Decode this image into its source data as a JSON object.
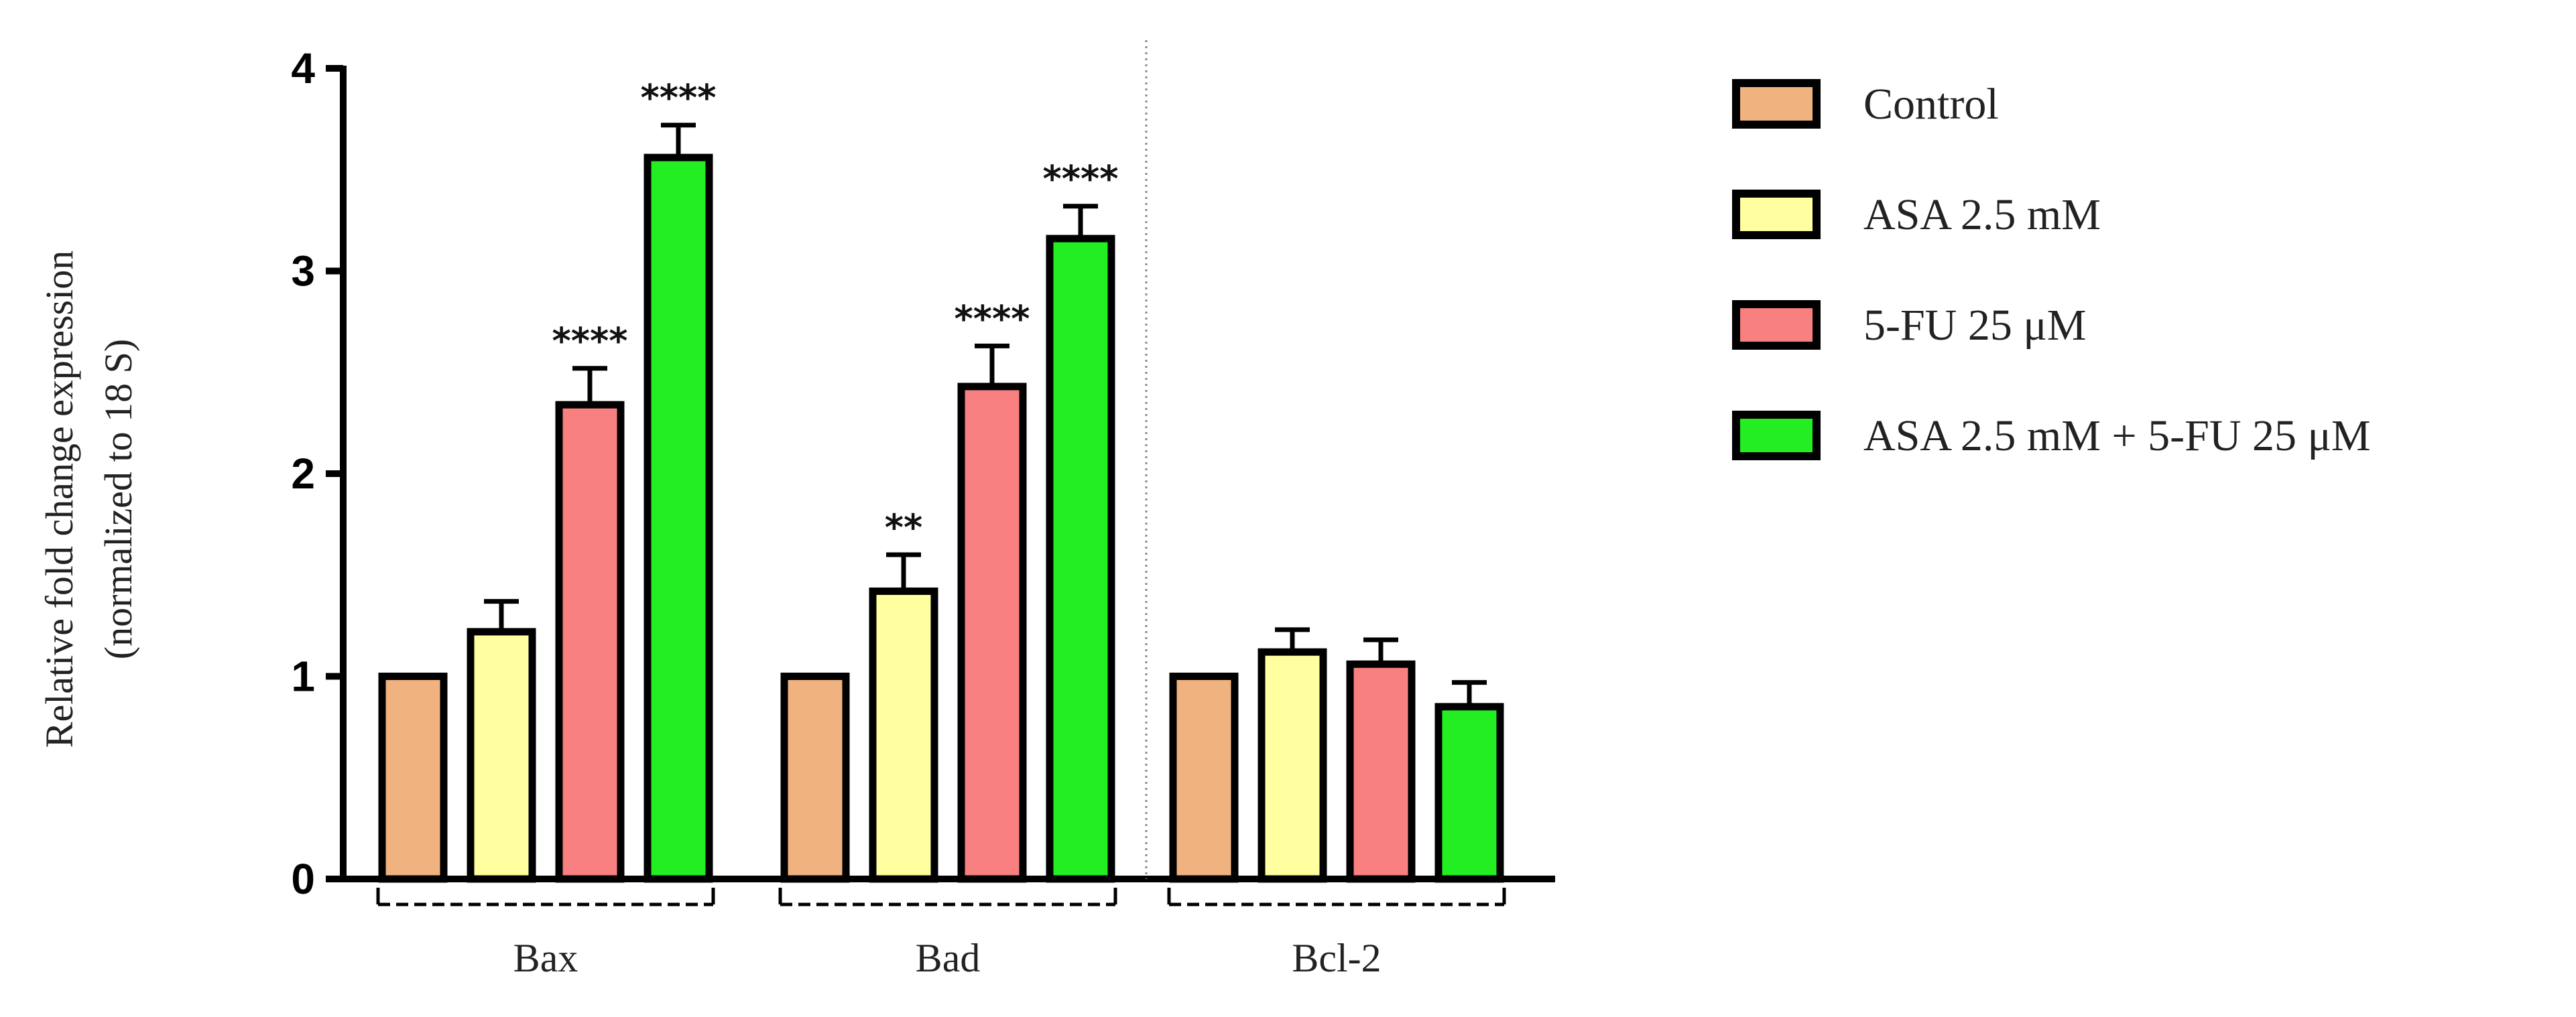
{
  "chart_data": {
    "type": "bar",
    "categories": [
      "Bax",
      "Bad",
      "Bcl-2"
    ],
    "ylabel_line1": "Relative fold change expression",
    "ylabel_line2": "(normalized to 18  S)",
    "xlabel": "",
    "title": "",
    "ylim": [
      0,
      4
    ],
    "yticks": [
      0,
      1,
      2,
      3,
      4
    ],
    "grid": false,
    "legend_position": "right",
    "series": [
      {
        "name": "Control",
        "color": "#F0B27F",
        "values": [
          1.0,
          1.0,
          1.0
        ],
        "errors": [
          0,
          0,
          0
        ],
        "significance": [
          "",
          "",
          ""
        ]
      },
      {
        "name": "ASA 2.5 mM",
        "color": "#FFFFA0",
        "values": [
          1.22,
          1.42,
          1.12
        ],
        "errors": [
          0.15,
          0.18,
          0.11
        ],
        "significance": [
          "",
          "**",
          ""
        ]
      },
      {
        "name": "5-FU 25 μM",
        "color": "#F88080",
        "values": [
          2.34,
          2.43,
          1.06
        ],
        "errors": [
          0.18,
          0.2,
          0.12
        ],
        "significance": [
          "****",
          "****",
          ""
        ]
      },
      {
        "name": "ASA 2.5 mM + 5-FU 25 μM",
        "color": "#22EE22",
        "values": [
          3.56,
          3.16,
          0.85
        ],
        "errors": [
          0.16,
          0.16,
          0.12
        ],
        "significance": [
          "****",
          "****",
          ""
        ]
      }
    ]
  }
}
